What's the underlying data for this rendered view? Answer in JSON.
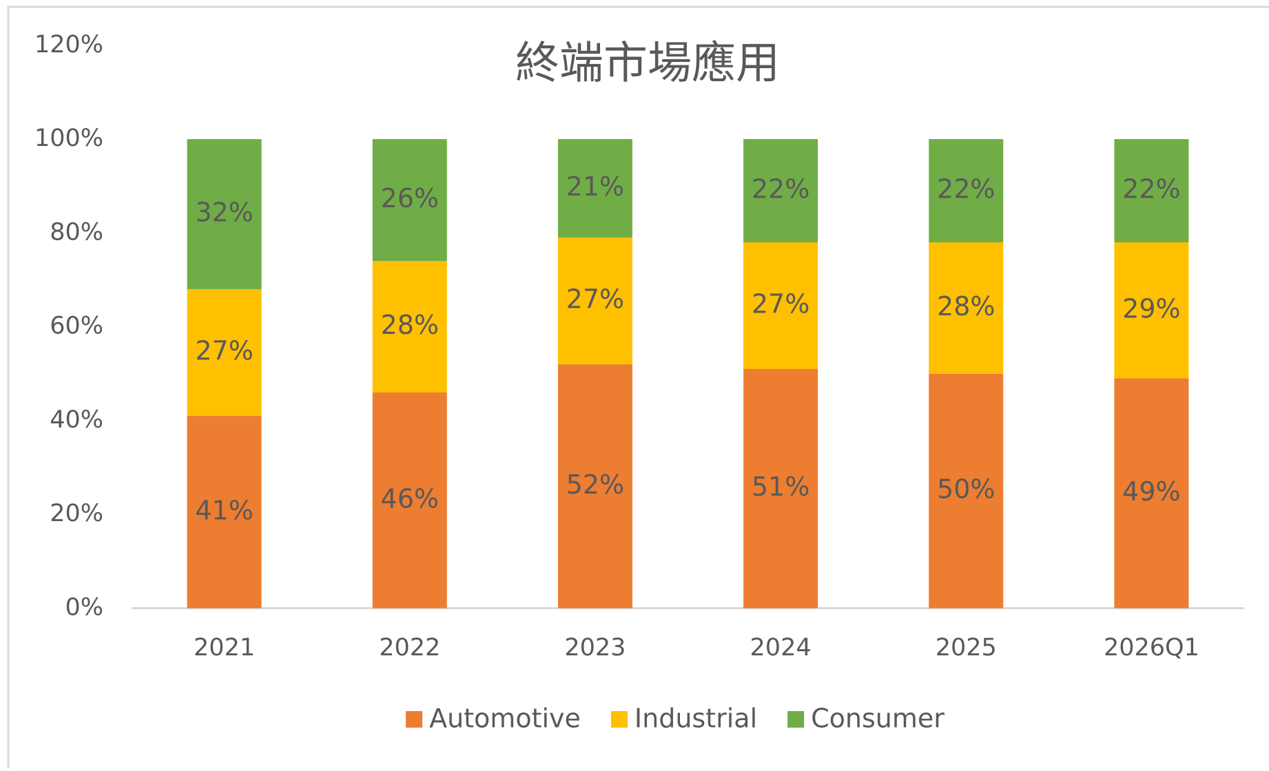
{
  "chart_data": {
    "type": "stacked_bar",
    "title": "終端市場應用",
    "categories": [
      "2021",
      "2022",
      "2023",
      "2024",
      "2025",
      "2026Q1"
    ],
    "series": [
      {
        "name": "Automotive",
        "color": "#ED7D31",
        "values": [
          41,
          46,
          52,
          51,
          50,
          49
        ],
        "value_labels": [
          "41%",
          "46%",
          "52%",
          "51%",
          "50%",
          "49%"
        ]
      },
      {
        "name": "Industrial",
        "color": "#FFC000",
        "values": [
          27,
          28,
          27,
          27,
          28,
          29
        ],
        "value_labels": [
          "27%",
          "28%",
          "27%",
          "27%",
          "28%",
          "29%"
        ]
      },
      {
        "name": "Consumer",
        "color": "#70AD47",
        "values": [
          32,
          26,
          21,
          22,
          22,
          22
        ],
        "value_labels": [
          "32%",
          "26%",
          "21%",
          "22%",
          "22%",
          "22%"
        ]
      }
    ],
    "ylim": [
      0,
      120
    ],
    "yticks": [
      {
        "value": 0,
        "label": "0%"
      },
      {
        "value": 20,
        "label": "20%"
      },
      {
        "value": 40,
        "label": "40%"
      },
      {
        "value": 60,
        "label": "60%"
      },
      {
        "value": 80,
        "label": "80%"
      },
      {
        "value": 100,
        "label": "100%"
      },
      {
        "value": 120,
        "label": "120%"
      }
    ],
    "grid": false,
    "legend": "bottom"
  }
}
